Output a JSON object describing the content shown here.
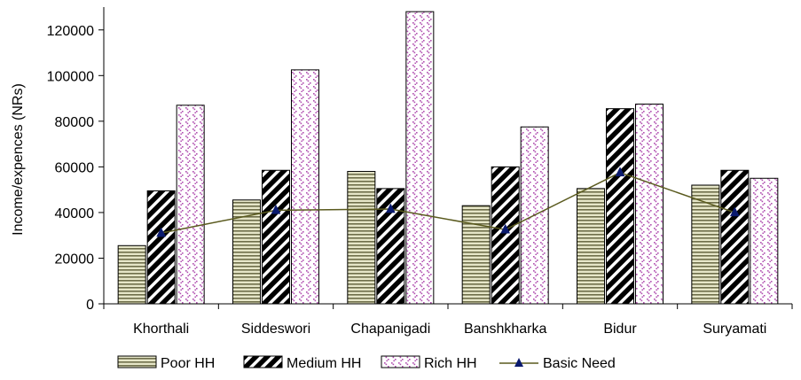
{
  "chart_data": {
    "type": "bar",
    "categories": [
      "Khorthali",
      "Siddeswori",
      "Chapanigadi",
      "Banshkharka",
      "Bidur",
      "Suryamati"
    ],
    "series": [
      {
        "name": "Poor HH",
        "type": "bar",
        "pattern": "horizontal-stripes",
        "color": "#c8c8a0",
        "values": [
          25500,
          45500,
          58000,
          43000,
          50500,
          52000
        ]
      },
      {
        "name": "Medium HH",
        "type": "bar",
        "pattern": "diagonal-stripes",
        "color": "#000000",
        "values": [
          49500,
          58500,
          50500,
          60000,
          85500,
          58500
        ]
      },
      {
        "name": "Rich HH",
        "type": "bar",
        "pattern": "pink-dots",
        "color": "#b04fb0",
        "values": [
          87000,
          102500,
          128000,
          77500,
          87500,
          55000
        ]
      },
      {
        "name": "Basic Need",
        "type": "line",
        "marker": "triangle",
        "color": "#5a5a1e",
        "marker_color": "#0a1a6e",
        "values": [
          31000,
          41000,
          41500,
          32500,
          57500,
          40000
        ]
      }
    ],
    "title": "",
    "xlabel": "",
    "ylabel": "Income/expences (NRs)",
    "ylim": [
      0,
      130000
    ],
    "yticks": [
      0,
      20000,
      40000,
      60000,
      80000,
      100000,
      120000
    ],
    "ytick_labels": [
      "0",
      "20000",
      "40000",
      "60000",
      "80000",
      "100000",
      "120000"
    ],
    "grid": false,
    "legend_position": "bottom"
  }
}
